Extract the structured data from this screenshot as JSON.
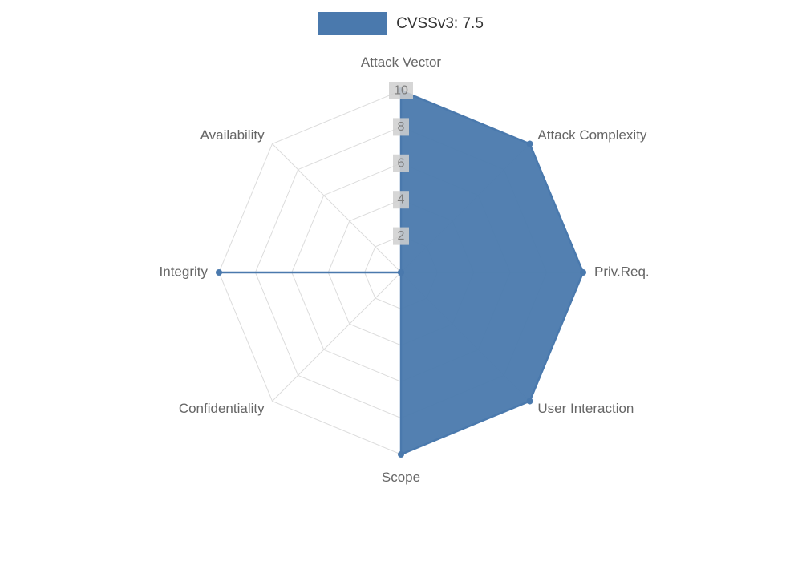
{
  "chart_data": {
    "type": "radar",
    "categories": [
      "Attack Vector",
      "Attack Complexity",
      "Priv.Req.",
      "User Interaction",
      "Scope",
      "Confidentiality",
      "Integrity",
      "Availability"
    ],
    "series": [
      {
        "name": "CVSSv3: 7.5",
        "values": [
          10,
          10,
          10,
          10,
          10,
          0,
          10,
          0
        ]
      }
    ],
    "ticks": [
      2,
      4,
      6,
      8,
      10
    ],
    "rlim": [
      0,
      10
    ],
    "grid": true,
    "legend_position": "top",
    "colors": {
      "series_fill": "#4a79ad",
      "series_fill_opacity": "0.95",
      "series_stroke": "#4a79ad",
      "point": "#4a79ad",
      "grid": "#dcdcdc",
      "axis_label": "#666666",
      "tick_text": "#7d7d7d",
      "tick_backdrop": "#cfcfcf",
      "background": "#ffffff"
    }
  },
  "legend": {
    "label": "CVSSv3: 7.5"
  }
}
